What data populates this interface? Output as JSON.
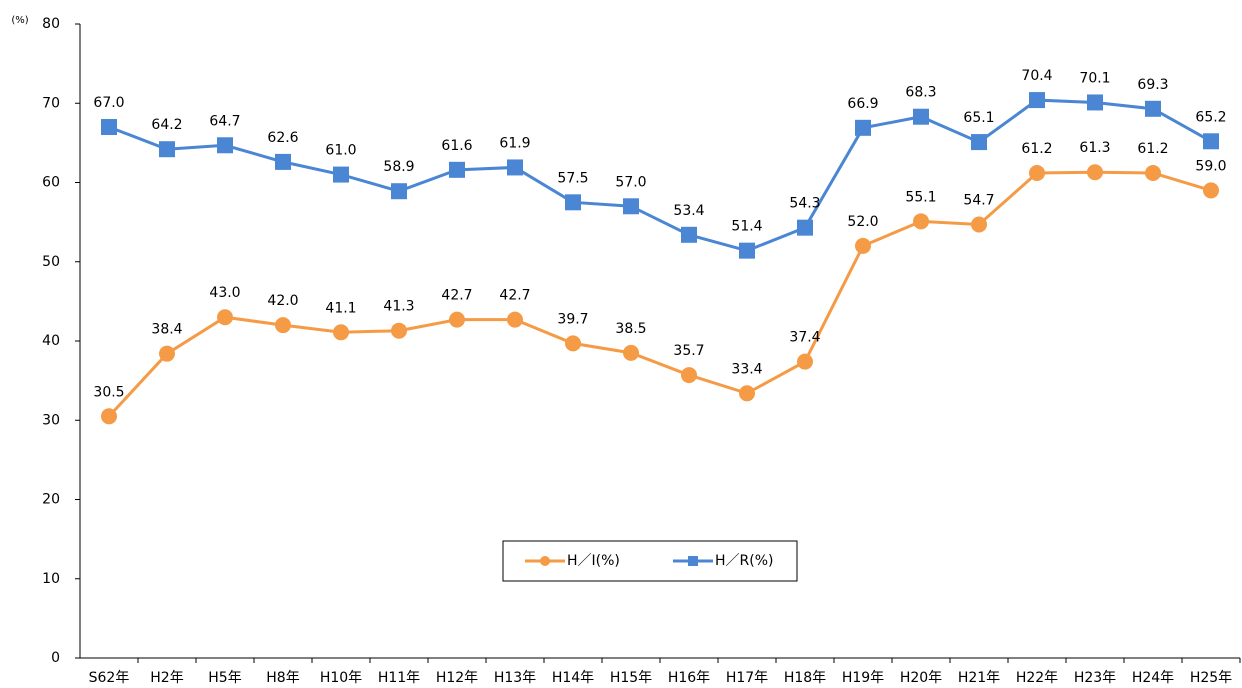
{
  "chart_data": {
    "type": "line",
    "y_unit_label": "(%)",
    "categories": [
      "S62年",
      "H2年",
      "H5年",
      "H8年",
      "H10年",
      "H11年",
      "H12年",
      "H13年",
      "H14年",
      "H15年",
      "H16年",
      "H17年",
      "H18年",
      "H19年",
      "H20年",
      "H21年",
      "H22年",
      "H23年",
      "H24年",
      "H25年"
    ],
    "series": [
      {
        "name": "H／I(%)",
        "color": "#f59a45",
        "marker": "circle",
        "values": [
          30.5,
          38.4,
          43.0,
          42.0,
          41.1,
          41.3,
          42.7,
          42.7,
          39.7,
          38.5,
          35.7,
          33.4,
          37.4,
          52.0,
          55.1,
          54.7,
          61.2,
          61.3,
          61.2,
          59.0
        ],
        "value_labels": [
          "30.5",
          "38.4",
          "43.0",
          "42.0",
          "41.1",
          "41.3",
          "42.7",
          "42.7",
          "39.7",
          "38.5",
          "35.7",
          "33.4",
          "37.4",
          "52.0",
          "55.1",
          "54.7",
          "61.2",
          "61.3",
          "61.2",
          "59.0"
        ]
      },
      {
        "name": "H／R(%)",
        "color": "#4a86d4",
        "marker": "square",
        "values": [
          67.0,
          64.2,
          64.7,
          62.6,
          61.0,
          58.9,
          61.6,
          61.9,
          57.5,
          57.0,
          53.4,
          51.4,
          54.3,
          66.9,
          68.3,
          65.1,
          70.4,
          70.1,
          69.3,
          65.2
        ],
        "value_labels": [
          "67.0",
          "64.2",
          "64.7",
          "62.6",
          "61.0",
          "58.9",
          "61.6",
          "61.9",
          "57.5",
          "57.0",
          "53.4",
          "51.4",
          "54.3",
          "66.9",
          "68.3",
          "65.1",
          "70.4",
          "70.1",
          "69.3",
          "65.2"
        ]
      }
    ],
    "ylim": [
      0,
      80
    ],
    "yticks": [
      0,
      10,
      20,
      30,
      40,
      50,
      60,
      70,
      80
    ],
    "grid": false,
    "legend": "lower center"
  }
}
